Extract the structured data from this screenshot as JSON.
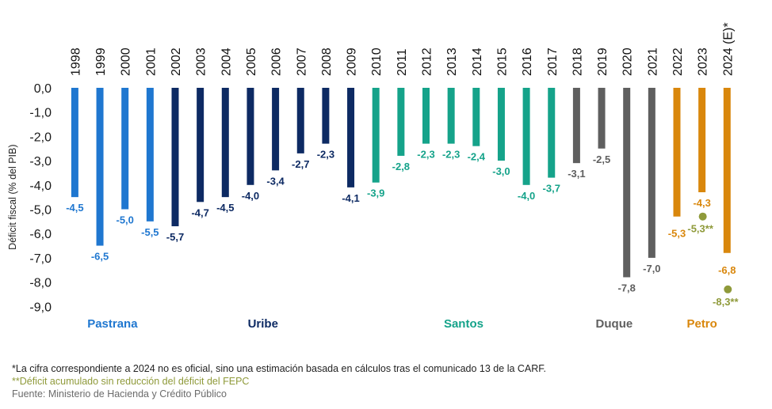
{
  "chart_data": {
    "type": "bar",
    "title": "",
    "xlabel": "",
    "ylabel": "Déficit fiscal (% del PIB)",
    "ylim": [
      -9.0,
      0.0
    ],
    "yticks": [
      "0,0",
      "-1,0",
      "-2,0",
      "-3,0",
      "-4,0",
      "-5,0",
      "-6,0",
      "-7,0",
      "-8,0",
      "-9,0"
    ],
    "grid": false,
    "categories": [
      "1998",
      "1999",
      "2000",
      "2001",
      "2002",
      "2003",
      "2004",
      "2005",
      "2006",
      "2007",
      "2008",
      "2009",
      "2010",
      "2011",
      "2012",
      "2013",
      "2014",
      "2015",
      "2016",
      "2017",
      "2018",
      "2019",
      "2020",
      "2021",
      "2022",
      "2023",
      "2024 (E)*"
    ],
    "values": [
      -4.5,
      -6.5,
      -5.0,
      -5.5,
      -5.7,
      -4.7,
      -4.5,
      -4.0,
      -3.4,
      -2.7,
      -2.3,
      -4.1,
      -3.9,
      -2.8,
      -2.3,
      -2.3,
      -2.4,
      -3.0,
      -4.0,
      -3.7,
      -3.1,
      -2.5,
      -7.8,
      -7.0,
      -5.3,
      -4.3,
      -6.8
    ],
    "value_labels": [
      "-4,5",
      "-6,5",
      "-5,0",
      "-5,5",
      "-5,7",
      "-4,7",
      "-4,5",
      "-4,0",
      "-3,4",
      "-2,7",
      "-2,3",
      "-4,1",
      "-3,9",
      "-2,8",
      "-2,3",
      "-2,3",
      "-2,4",
      "-3,0",
      "-4,0",
      "-3,7",
      "-3,1",
      "-2,5",
      "-7,8",
      "-7,0",
      "-5,3",
      "-4,3",
      "-6,8"
    ],
    "groups": [
      {
        "name": "Pastrana",
        "start": 0,
        "end": 3,
        "color": "#1f77d0"
      },
      {
        "name": "Uribe",
        "start": 4,
        "end": 11,
        "color": "#0d2a63"
      },
      {
        "name": "Santos",
        "start": 12,
        "end": 19,
        "color": "#15a38a"
      },
      {
        "name": "Duque",
        "start": 20,
        "end": 23,
        "color": "#5f5f5f"
      },
      {
        "name": "Petro",
        "start": 24,
        "end": 26,
        "color": "#d9870c"
      }
    ],
    "extra_points": [
      {
        "category": "2023",
        "value": -5.3,
        "label": "-5,3**",
        "color": "#8f9a3a"
      },
      {
        "category": "2024 (E)*",
        "value": -8.3,
        "label": "-8,3**",
        "color": "#8f9a3a"
      }
    ]
  },
  "notes": [
    {
      "text": "*La cifra correspondiente a 2024 no es oficial, sino una estimación basada en cálculos tras el comunicado 13 de la CARF.",
      "color": "#222222"
    },
    {
      "text": "**Déficit acumulado sin reducción del déficit del FEPC",
      "color": "#8f9a3a"
    },
    {
      "text": "Fuente: Ministerio de Hacienda y Crédito Público",
      "color": "#6b6b6b"
    }
  ]
}
